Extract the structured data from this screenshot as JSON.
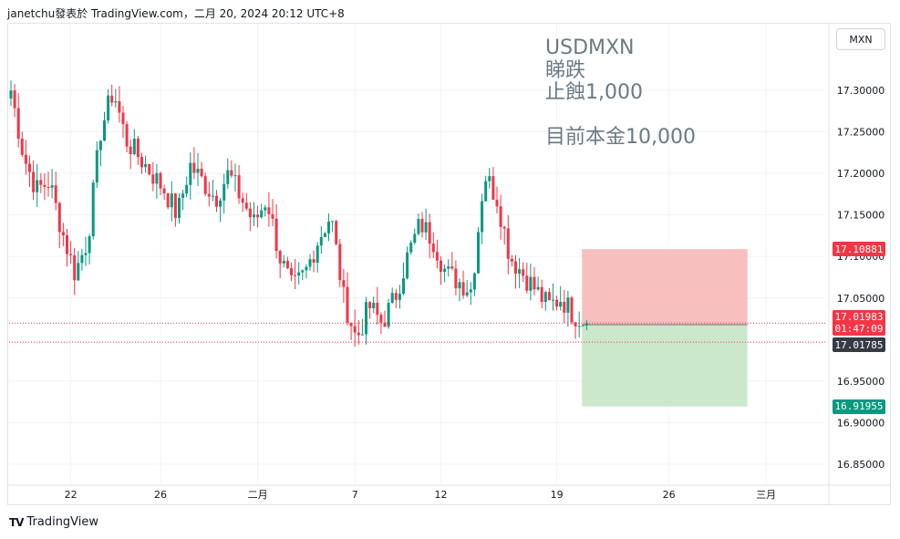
{
  "header": {
    "text": "janetchu發表於 TradingView.com，二月 20, 2024 20:12 UTC+8"
  },
  "symbol_button": "MXN",
  "annotations": {
    "symbol": "USDMXN",
    "direction": "睇跌",
    "stop_loss": "止蝕1,000",
    "capital": "目前本金10,000"
  },
  "tags": {
    "stop": {
      "label": "17.10881",
      "value": 17.10881,
      "color": "#f23645"
    },
    "current": {
      "label": "17.01983",
      "value": 17.01983,
      "color": "#f23645"
    },
    "countdown": "01:47:09",
    "entry": {
      "label": "17.01785",
      "value": 17.01785,
      "color": "#363a45"
    },
    "target": {
      "label": "16.91955",
      "value": 16.91955,
      "color": "#089981"
    }
  },
  "footer": {
    "logo": "TV",
    "brand": "TradingView"
  },
  "colors": {
    "up": "#089981",
    "down": "#f23645",
    "risk_zone": "#f7b4b4",
    "reward_zone": "#c8e6c9"
  },
  "chart_data": {
    "type": "candlestick",
    "y_ticks": [
      "17.30000",
      "17.25000",
      "17.20000",
      "17.15000",
      "17.10000",
      "17.05000",
      "16.95000",
      "16.90000",
      "16.85000"
    ],
    "y_tick_values": [
      17.3,
      17.25,
      17.2,
      17.15,
      17.1,
      17.05,
      16.95,
      16.9,
      16.85
    ],
    "ylim": [
      16.827,
      17.38
    ],
    "x_ticks": [
      "22",
      "26",
      "二月",
      "7",
      "12",
      "19",
      "26",
      "三月"
    ],
    "x_tick_index": [
      16,
      40,
      66,
      92,
      115,
      146,
      176,
      202
    ],
    "candle_count": 155,
    "trend": [
      17.3,
      17.22,
      17.18,
      17.19,
      17.13,
      17.08,
      17.12,
      17.25,
      17.3,
      17.24,
      17.22,
      17.2,
      17.18,
      17.15,
      17.21,
      17.19,
      17.17,
      17.2,
      17.17,
      17.14,
      17.17,
      17.1,
      17.06,
      17.08,
      17.12,
      17.15,
      17.05,
      17.0,
      17.04,
      17.02,
      17.05,
      17.1,
      17.14,
      17.12,
      17.08,
      17.07,
      17.06,
      17.2,
      17.17,
      17.1,
      17.08,
      17.06,
      17.04,
      17.05,
      17.03,
      17.02
    ],
    "risk_reward": {
      "start_index": 153,
      "end_index": 197,
      "stop": 17.10881,
      "entry": 17.01785,
      "target": 16.91955
    },
    "current_price": 17.01983,
    "grid": true
  }
}
